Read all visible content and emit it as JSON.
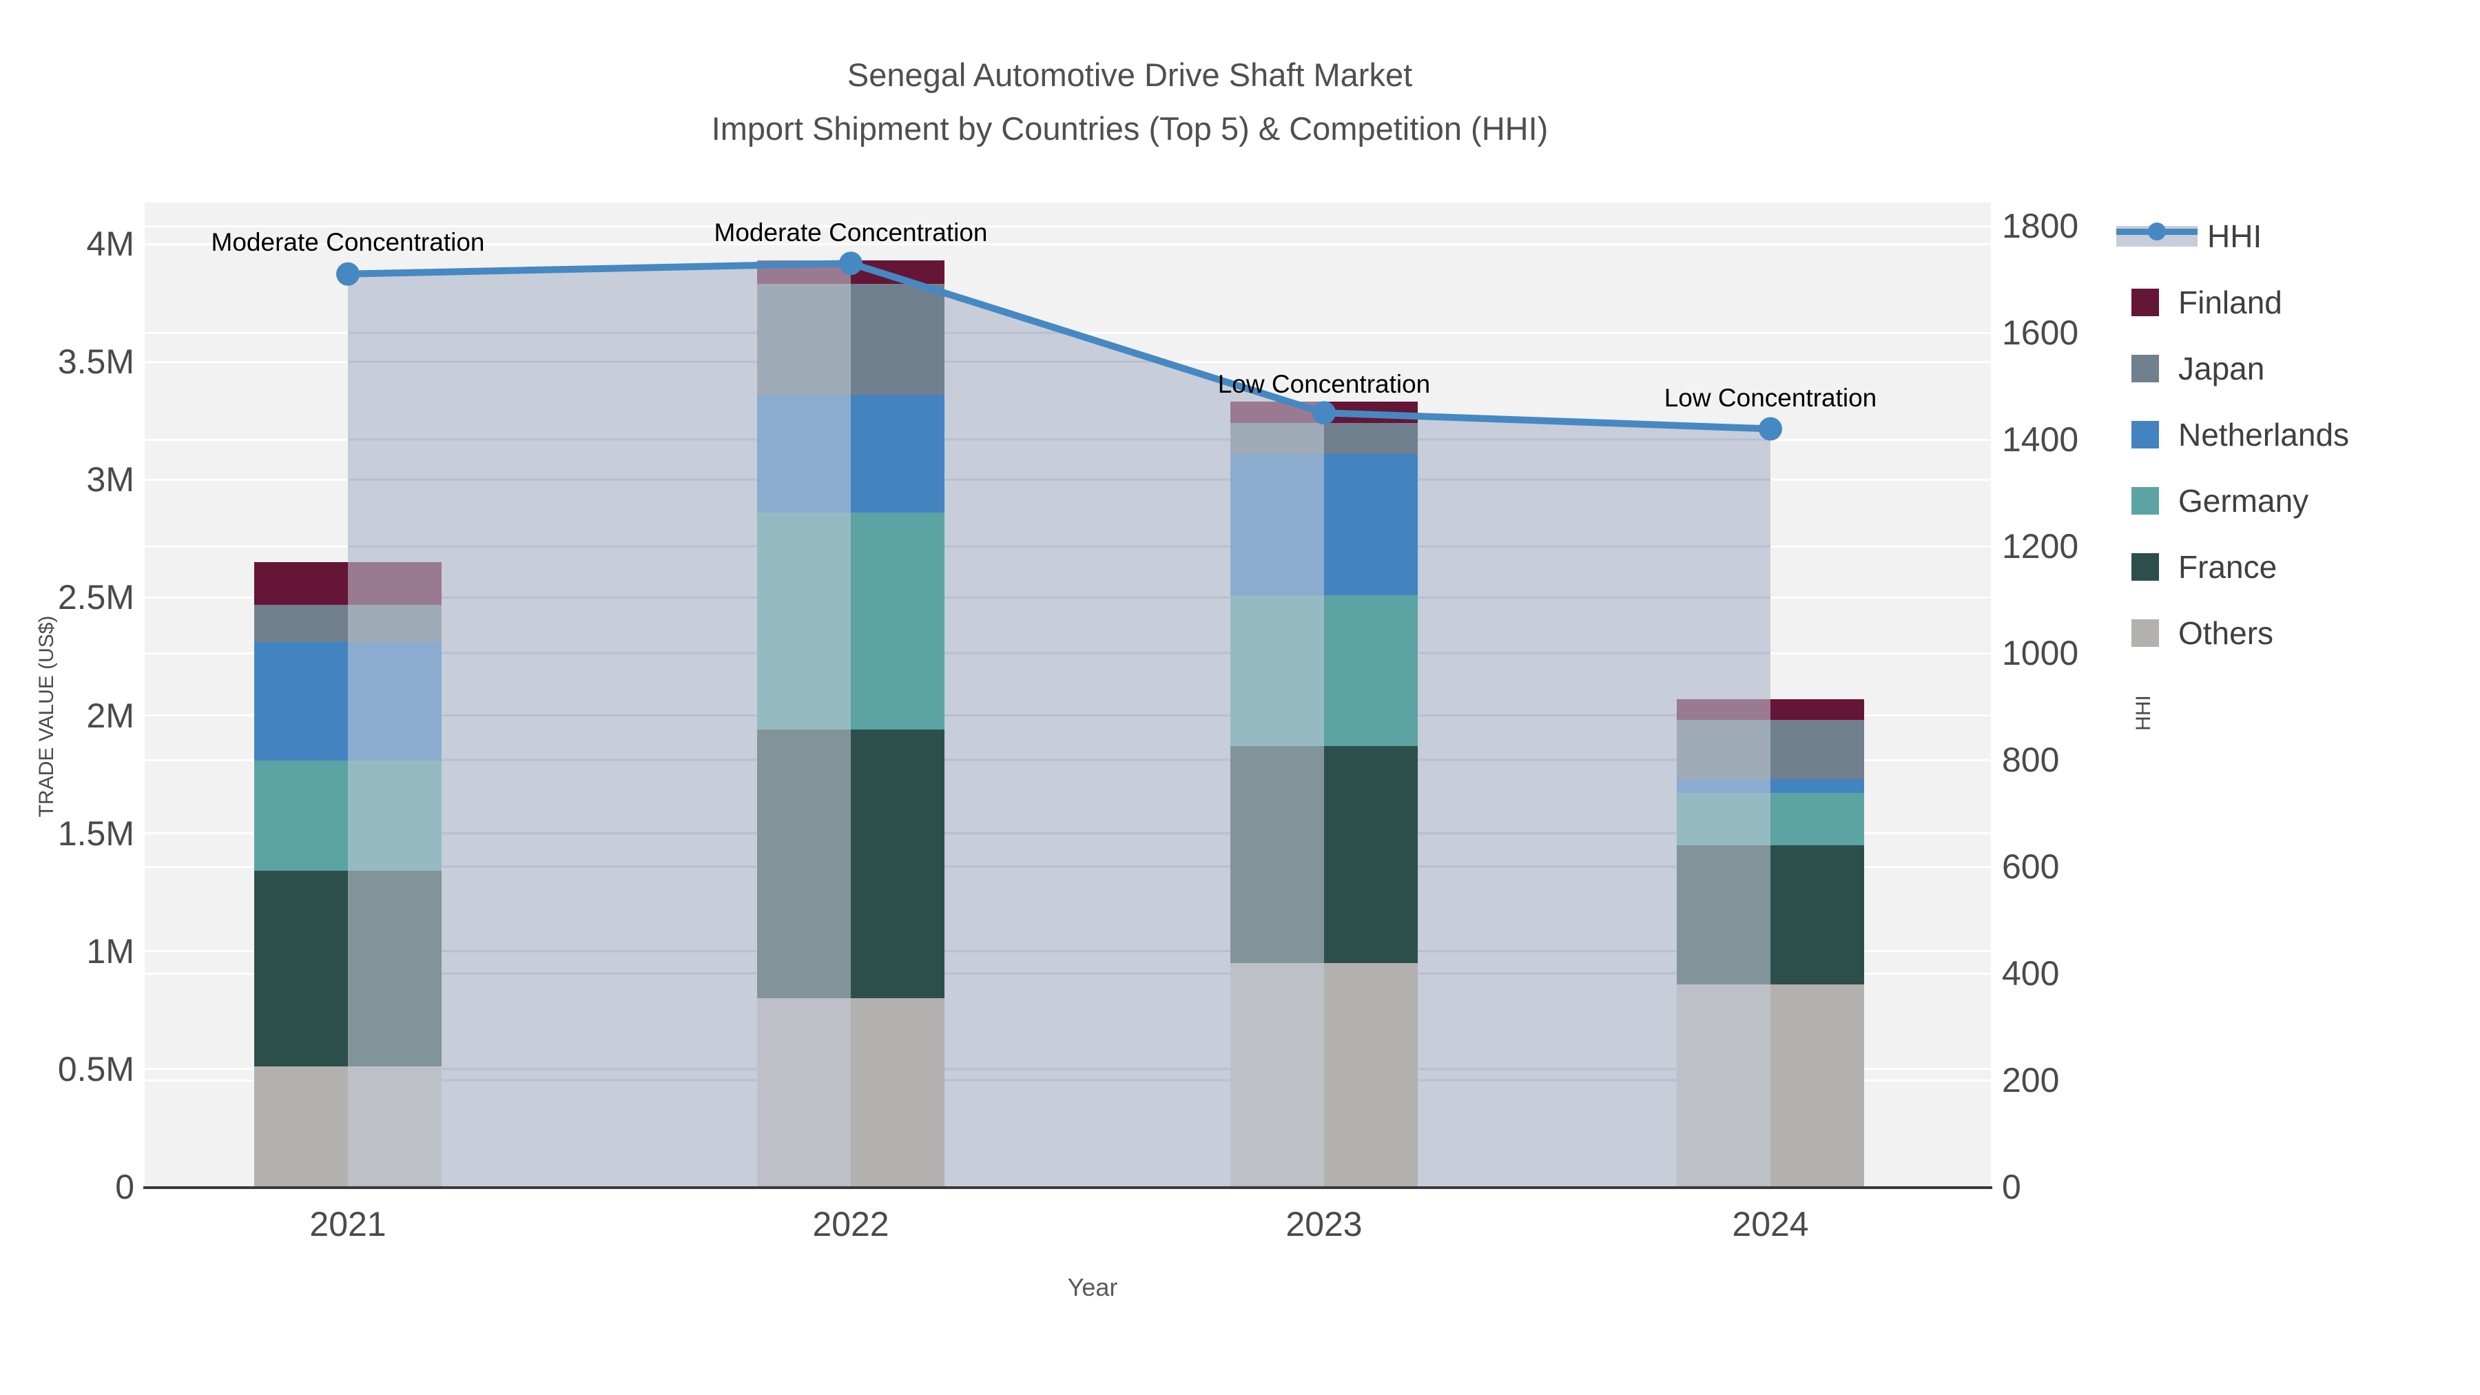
{
  "title": {
    "line1": "Senegal Automotive Drive Shaft Market",
    "line2": "Import Shipment by Countries (Top 5) & Competition (HHI)"
  },
  "axis_left": {
    "label": "TRADE VALUE (US$)",
    "ticks": [
      "0",
      "0.5M",
      "1M",
      "1.5M",
      "2M",
      "2.5M",
      "3M",
      "3.5M",
      "4M"
    ]
  },
  "axis_right": {
    "label": "HHI",
    "ticks": [
      "0",
      "200",
      "400",
      "600",
      "800",
      "1000",
      "1200",
      "1400",
      "1600",
      "1800"
    ]
  },
  "axis_x": {
    "label": "Year",
    "ticks": [
      "2021",
      "2022",
      "2023",
      "2024"
    ]
  },
  "legend": {
    "items": [
      {
        "label": "HHI",
        "type": "line",
        "color": "#4688c2",
        "band": "#c7cdd9"
      },
      {
        "label": "Finland",
        "type": "swatch",
        "color": "#651536"
      },
      {
        "label": "Japan",
        "type": "swatch",
        "color": "#71808f"
      },
      {
        "label": "Netherlands",
        "type": "swatch",
        "color": "#4384c0"
      },
      {
        "label": "Germany",
        "type": "swatch",
        "color": "#5ca3a3"
      },
      {
        "label": "France",
        "type": "swatch",
        "color": "#2d4f4c"
      },
      {
        "label": "Others",
        "type": "swatch",
        "color": "#b2b1b0"
      }
    ]
  },
  "chart_data": {
    "type": [
      "bar",
      "line"
    ],
    "title": "Senegal Automotive Drive Shaft Market — Import Shipment by Countries (Top 5) & Competition (HHI)",
    "categories": [
      "2021",
      "2022",
      "2023",
      "2024"
    ],
    "xlabel": "Year",
    "ylabel": "TRADE VALUE (US$)",
    "y2label": "HHI",
    "ylim": [
      0,
      4000000
    ],
    "y2lim": [
      0,
      1800
    ],
    "grid": true,
    "legend_position": "right",
    "series": [
      {
        "name": "Others",
        "stack_order": 1,
        "color": "#b2b1b0",
        "values": [
          510000,
          800000,
          950000,
          860000
        ]
      },
      {
        "name": "France",
        "stack_order": 2,
        "color": "#2d4f4c",
        "values": [
          830000,
          1140000,
          920000,
          590000
        ]
      },
      {
        "name": "Germany",
        "stack_order": 3,
        "color": "#5ca3a3",
        "values": [
          470000,
          920000,
          640000,
          220000
        ]
      },
      {
        "name": "Netherlands",
        "stack_order": 4,
        "color": "#4384c0",
        "values": [
          500000,
          500000,
          600000,
          60000
        ]
      },
      {
        "name": "Japan",
        "stack_order": 5,
        "color": "#71808f",
        "values": [
          160000,
          470000,
          130000,
          250000
        ]
      },
      {
        "name": "Finland",
        "stack_order": 6,
        "color": "#651536",
        "values": [
          180000,
          100000,
          90000,
          90000
        ]
      }
    ],
    "stack_totals": [
      2650000,
      3930000,
      3330000,
      2070000
    ],
    "hhi_line": {
      "name": "HHI",
      "axis": "right",
      "color": "#4688c2",
      "area_fill": "#c7cdd9",
      "values": [
        1710,
        1730,
        1450,
        1420
      ]
    },
    "annotations": [
      {
        "category": "2021",
        "text": "Moderate Concentration"
      },
      {
        "category": "2022",
        "text": "Moderate Concentration"
      },
      {
        "category": "2023",
        "text": "Low Concentration"
      },
      {
        "category": "2024",
        "text": "Low Concentration"
      }
    ]
  }
}
